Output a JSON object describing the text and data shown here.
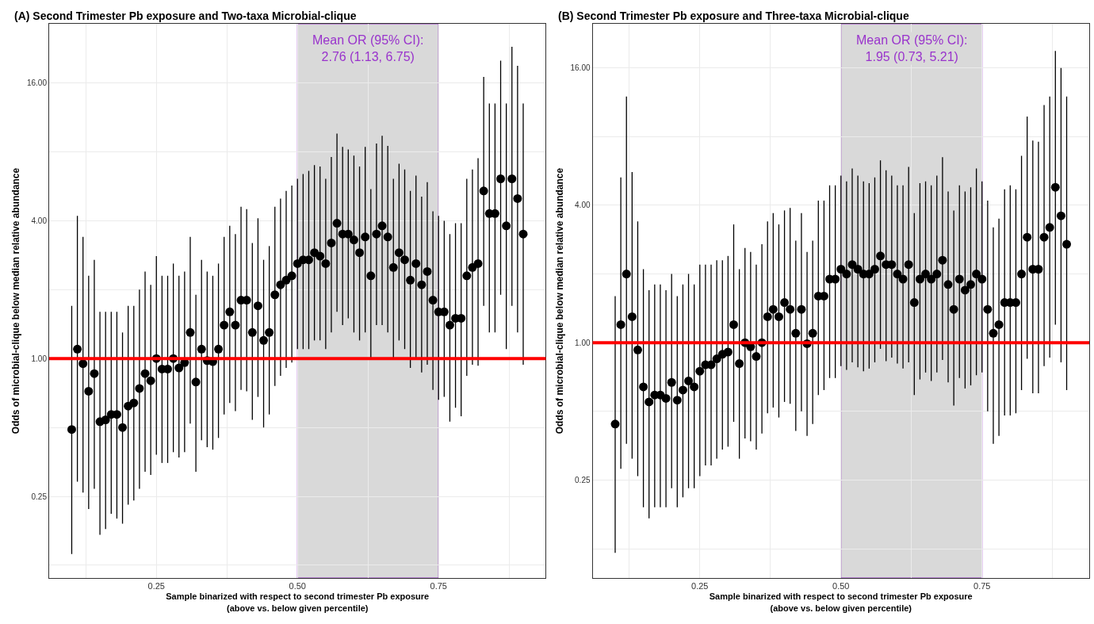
{
  "chart_data": [
    {
      "type": "scatter",
      "title": "(A) Second Trimester Pb exposure and Two-taxa Microbial-clique",
      "xlabel": "Sample binarized with respect to second trimester Pb exposure\n(above vs. below given percentile)",
      "ylabel": "Odds of microbial-clique below median relative abundance",
      "x": [
        0.1,
        0.11,
        0.12,
        0.13,
        0.14,
        0.15,
        0.16,
        0.17,
        0.18,
        0.19,
        0.2,
        0.21,
        0.22,
        0.23,
        0.24,
        0.25,
        0.26,
        0.27,
        0.28,
        0.29,
        0.3,
        0.31,
        0.32,
        0.33,
        0.34,
        0.35,
        0.36,
        0.37,
        0.38,
        0.39,
        0.4,
        0.41,
        0.42,
        0.43,
        0.44,
        0.45,
        0.46,
        0.47,
        0.48,
        0.49,
        0.5,
        0.51,
        0.52,
        0.53,
        0.54,
        0.55,
        0.56,
        0.57,
        0.58,
        0.59,
        0.6,
        0.61,
        0.62,
        0.63,
        0.64,
        0.65,
        0.66,
        0.67,
        0.68,
        0.69,
        0.7,
        0.71,
        0.72,
        0.73,
        0.74,
        0.75,
        0.76,
        0.77,
        0.78,
        0.79,
        0.8,
        0.81,
        0.82,
        0.83,
        0.84,
        0.85,
        0.86,
        0.87,
        0.88,
        0.89,
        0.9
      ],
      "series": [
        {
          "color": "#000000",
          "values": [
            0.49,
            1.1,
            0.95,
            0.72,
            0.86,
            0.53,
            0.54,
            0.57,
            0.57,
            0.5,
            0.62,
            0.64,
            0.74,
            0.86,
            0.8,
            1,
            0.9,
            0.9,
            1,
            0.91,
            0.96,
            1.3,
            0.79,
            1.1,
            0.98,
            0.97,
            1.1,
            1.4,
            1.6,
            1.4,
            1.8,
            1.8,
            1.3,
            1.7,
            1.2,
            1.3,
            1.9,
            2.1,
            2.2,
            2.3,
            2.6,
            2.7,
            2.7,
            2.9,
            2.8,
            2.6,
            3.2,
            3.9,
            3.5,
            3.5,
            3.3,
            2.9,
            3.4,
            2.3,
            3.5,
            3.8,
            3.4,
            2.5,
            2.9,
            2.7,
            2.2,
            2.6,
            2.1,
            2.4,
            1.8,
            1.6,
            1.6,
            1.4,
            1.5,
            1.5,
            2.3,
            2.5,
            2.6,
            5.4,
            4.3,
            4.3,
            6.1,
            3.8,
            6.1,
            5,
            3.5
          ],
          "errors": [
            [
              0.14,
              1.7
            ],
            [
              0.29,
              4.2
            ],
            [
              0.26,
              3.4
            ],
            [
              0.22,
              2.3
            ],
            [
              0.27,
              2.7
            ],
            [
              0.17,
              1.6
            ],
            [
              0.18,
              1.6
            ],
            [
              0.21,
              1.6
            ],
            [
              0.2,
              1.6
            ],
            [
              0.19,
              1.3
            ],
            [
              0.23,
              1.7
            ],
            [
              0.24,
              1.7
            ],
            [
              0.27,
              2
            ],
            [
              0.32,
              2.4
            ],
            [
              0.31,
              2.1
            ],
            [
              0.38,
              2.8
            ],
            [
              0.35,
              2.3
            ],
            [
              0.35,
              2.3
            ],
            [
              0.39,
              2.6
            ],
            [
              0.37,
              2.3
            ],
            [
              0.39,
              2.4
            ],
            [
              0.52,
              3.4
            ],
            [
              0.32,
              1.9
            ],
            [
              0.44,
              2.7
            ],
            [
              0.41,
              2.4
            ],
            [
              0.4,
              2.3
            ],
            [
              0.45,
              2.6
            ],
            [
              0.57,
              3.4
            ],
            [
              0.64,
              3.8
            ],
            [
              0.59,
              3.5
            ],
            [
              0.73,
              4.6
            ],
            [
              0.72,
              4.5
            ],
            [
              0.54,
              3.2
            ],
            [
              0.68,
              4.1
            ],
            [
              0.5,
              2.7
            ],
            [
              0.57,
              3.1
            ],
            [
              0.76,
              4.6
            ],
            [
              0.84,
              5
            ],
            [
              0.91,
              5.4
            ],
            [
              0.96,
              5.7
            ],
            [
              1.1,
              6.1
            ],
            [
              1.1,
              6.4
            ],
            [
              1.1,
              6.6
            ],
            [
              1.2,
              7
            ],
            [
              1.2,
              6.9
            ],
            [
              1.1,
              6.1
            ],
            [
              1.3,
              7.6
            ],
            [
              1.6,
              9.6
            ],
            [
              1.4,
              8.4
            ],
            [
              1.5,
              8.2
            ],
            [
              1.3,
              7.7
            ],
            [
              1.2,
              6.9
            ],
            [
              1.3,
              8.4
            ],
            [
              1,
              5.5
            ],
            [
              1.4,
              8.7
            ],
            [
              1.4,
              9.4
            ],
            [
              1.3,
              8.5
            ],
            [
              1,
              6.1
            ],
            [
              1.2,
              7.1
            ],
            [
              1.1,
              6.7
            ],
            [
              0.91,
              5.4
            ],
            [
              1,
              6.3
            ],
            [
              0.87,
              5.1
            ],
            [
              0.94,
              5.9
            ],
            [
              0.73,
              4.4
            ],
            [
              0.66,
              4.2
            ],
            [
              0.68,
              4
            ],
            [
              0.53,
              3.5
            ],
            [
              0.61,
              3.9
            ],
            [
              0.56,
              3.9
            ],
            [
              0.84,
              6.1
            ],
            [
              0.94,
              6.7
            ],
            [
              0.93,
              7.5
            ],
            [
              1.7,
              17
            ],
            [
              1.3,
              13
            ],
            [
              1.3,
              13
            ],
            [
              1.9,
              20
            ],
            [
              1.1,
              13
            ],
            [
              1.7,
              23
            ],
            [
              1.3,
              19
            ],
            [
              0.94,
              13
            ]
          ]
        }
      ],
      "marker": "circle",
      "log": "y",
      "grid": true,
      "xlim": [
        0.06,
        0.94
      ],
      "xticks": [
        {
          "value": 0.125,
          "label": null
        },
        {
          "value": 0.25,
          "label": "0.25"
        },
        {
          "value": 0.375,
          "label": null
        },
        {
          "value": 0.5,
          "label": "0.50"
        },
        {
          "value": 0.625,
          "label": null
        },
        {
          "value": 0.75,
          "label": "0.75"
        },
        {
          "value": 0.875,
          "label": null
        }
      ],
      "ylim": [
        0.11,
        29
      ],
      "yticks": [
        {
          "value": 0.125,
          "label": null
        },
        0.25,
        {
          "value": 0.5,
          "label": null
        },
        {
          "value": 1,
          "label": "1.00"
        },
        {
          "value": 2,
          "label": null
        },
        {
          "value": 4,
          "label": "4.00"
        },
        {
          "value": 8,
          "label": null
        },
        {
          "value": 16,
          "label": "16.00"
        }
      ],
      "ref_lines": [
        {
          "axis": "y",
          "value": 1,
          "color": "#ff0000"
        }
      ],
      "bands": [
        {
          "axis": "x",
          "from": 0.5,
          "to": 0.75,
          "label": "Mean OR (95% CI):\n2.76 (1.13, 6.75)",
          "color": "#d9d9d9"
        }
      ]
    },
    {
      "type": "scatter",
      "title": "(B) Second Trimester Pb exposure and Three-taxa Microbial-clique",
      "xlabel": "Sample binarized with respect to second trimester Pb exposure\n(above vs. below given percentile)",
      "ylabel": "Odds of microbial-clique below median relative abundance",
      "x": [
        0.1,
        0.11,
        0.12,
        0.13,
        0.14,
        0.15,
        0.16,
        0.17,
        0.18,
        0.19,
        0.2,
        0.21,
        0.22,
        0.23,
        0.24,
        0.25,
        0.26,
        0.27,
        0.28,
        0.29,
        0.3,
        0.31,
        0.32,
        0.33,
        0.34,
        0.35,
        0.36,
        0.37,
        0.38,
        0.39,
        0.4,
        0.41,
        0.42,
        0.43,
        0.44,
        0.45,
        0.46,
        0.47,
        0.48,
        0.49,
        0.5,
        0.51,
        0.52,
        0.53,
        0.54,
        0.55,
        0.56,
        0.57,
        0.58,
        0.59,
        0.6,
        0.61,
        0.62,
        0.63,
        0.64,
        0.65,
        0.66,
        0.67,
        0.68,
        0.69,
        0.7,
        0.71,
        0.72,
        0.73,
        0.74,
        0.75,
        0.76,
        0.77,
        0.78,
        0.79,
        0.8,
        0.81,
        0.82,
        0.83,
        0.84,
        0.85,
        0.86,
        0.87,
        0.88,
        0.89,
        0.9
      ],
      "series": [
        {
          "color": "#000000",
          "values": [
            0.44,
            1.2,
            2,
            1.3,
            0.93,
            0.64,
            0.55,
            0.59,
            0.59,
            0.57,
            0.67,
            0.56,
            0.62,
            0.68,
            0.64,
            0.75,
            0.8,
            0.8,
            0.85,
            0.89,
            0.91,
            1.2,
            0.81,
            1,
            0.96,
            0.87,
            1,
            1.3,
            1.4,
            1.3,
            1.5,
            1.4,
            1.1,
            1.4,
            0.99,
            1.1,
            1.6,
            1.6,
            1.9,
            1.9,
            2.1,
            2,
            2.2,
            2.1,
            2,
            2,
            2.1,
            2.4,
            2.2,
            2.2,
            2,
            1.9,
            2.2,
            1.5,
            1.9,
            2,
            1.9,
            2,
            2.3,
            1.8,
            1.4,
            1.9,
            1.7,
            1.8,
            2,
            1.9,
            1.4,
            1.1,
            1.2,
            1.5,
            1.5,
            1.5,
            2,
            2.9,
            2.1,
            2.1,
            2.9,
            3.2,
            4.8,
            3.6,
            2.7
          ],
          "errors": [
            [
              0.12,
              1.6
            ],
            [
              0.28,
              5.3
            ],
            [
              0.36,
              12
            ],
            [
              0.31,
              5.6
            ],
            [
              0.26,
              3.4
            ],
            [
              0.19,
              2.1
            ],
            [
              0.17,
              1.7
            ],
            [
              0.19,
              1.8
            ],
            [
              0.19,
              1.8
            ],
            [
              0.19,
              1.7
            ],
            [
              0.23,
              2
            ],
            [
              0.19,
              1.6
            ],
            [
              0.21,
              1.8
            ],
            [
              0.23,
              2
            ],
            [
              0.23,
              1.8
            ],
            [
              0.26,
              2.2
            ],
            [
              0.29,
              2.2
            ],
            [
              0.29,
              2.2
            ],
            [
              0.31,
              2.3
            ],
            [
              0.34,
              2.3
            ],
            [
              0.35,
              2.4
            ],
            [
              0.45,
              3.3
            ],
            [
              0.31,
              2.1
            ],
            [
              0.38,
              2.6
            ],
            [
              0.37,
              2.5
            ],
            [
              0.34,
              2.2
            ],
            [
              0.4,
              2.7
            ],
            [
              0.49,
              3.4
            ],
            [
              0.52,
              3.7
            ],
            [
              0.47,
              3.3
            ],
            [
              0.55,
              3.8
            ],
            [
              0.54,
              3.9
            ],
            [
              0.41,
              2.8
            ],
            [
              0.5,
              3.7
            ],
            [
              0.39,
              2.5
            ],
            [
              0.44,
              2.8
            ],
            [
              0.59,
              4.2
            ],
            [
              0.62,
              4.2
            ],
            [
              0.7,
              4.9
            ],
            [
              0.7,
              4.9
            ],
            [
              0.79,
              5.4
            ],
            [
              0.76,
              5.1
            ],
            [
              0.82,
              5.8
            ],
            [
              0.78,
              5.4
            ],
            [
              0.75,
              5.1
            ],
            [
              0.77,
              5
            ],
            [
              0.82,
              5.3
            ],
            [
              0.94,
              6.3
            ],
            [
              0.83,
              5.7
            ],
            [
              0.86,
              5.4
            ],
            [
              0.81,
              4.9
            ],
            [
              0.77,
              4.9
            ],
            [
              0.82,
              5.9
            ],
            [
              0.59,
              3.7
            ],
            [
              0.69,
              5
            ],
            [
              0.74,
              5.1
            ],
            [
              0.68,
              4.9
            ],
            [
              0.74,
              5.4
            ],
            [
              0.84,
              6.5
            ],
            [
              0.67,
              4.6
            ],
            [
              0.53,
              3.8
            ],
            [
              0.7,
              4.9
            ],
            [
              0.63,
              4.6
            ],
            [
              0.65,
              4.8
            ],
            [
              0.72,
              5.8
            ],
            [
              0.74,
              5.1
            ],
            [
              0.5,
              4.2
            ],
            [
              0.36,
              3.2
            ],
            [
              0.39,
              3.5
            ],
            [
              0.48,
              4.7
            ],
            [
              0.48,
              4.9
            ],
            [
              0.49,
              4.7
            ],
            [
              0.62,
              6.6
            ],
            [
              0.85,
              9.8
            ],
            [
              0.6,
              7.7
            ],
            [
              0.6,
              7.6
            ],
            [
              0.79,
              11
            ],
            [
              0.86,
              12
            ],
            [
              1.2,
              19
            ],
            [
              0.82,
              16
            ],
            [
              0.62,
              12
            ]
          ]
        }
      ],
      "marker": "circle",
      "log": "y",
      "grid": true,
      "xlim": [
        0.06,
        0.94
      ],
      "xticks": [
        {
          "value": 0.125,
          "label": null
        },
        {
          "value": 0.25,
          "label": "0.25"
        },
        {
          "value": 0.375,
          "label": null
        },
        {
          "value": 0.5,
          "label": "0.50"
        },
        {
          "value": 0.625,
          "label": null
        },
        {
          "value": 0.75,
          "label": "0.75"
        },
        {
          "value": 0.875,
          "label": null
        }
      ],
      "ylim": [
        0.093,
        25
      ],
      "yticks": [
        {
          "value": 0.125,
          "label": null
        },
        0.25,
        {
          "value": 0.5,
          "label": null
        },
        {
          "value": 1,
          "label": "1.00"
        },
        {
          "value": 2,
          "label": null
        },
        {
          "value": 4,
          "label": "4.00"
        },
        {
          "value": 8,
          "label": null
        },
        {
          "value": 16,
          "label": "16.00"
        }
      ],
      "ref_lines": [
        {
          "axis": "y",
          "value": 1,
          "color": "#ff0000"
        }
      ],
      "bands": [
        {
          "axis": "x",
          "from": 0.5,
          "to": 0.75,
          "label": "Mean OR (95% CI):\n1.95 (0.73, 5.21)",
          "color": "#d9d9d9"
        }
      ]
    }
  ]
}
